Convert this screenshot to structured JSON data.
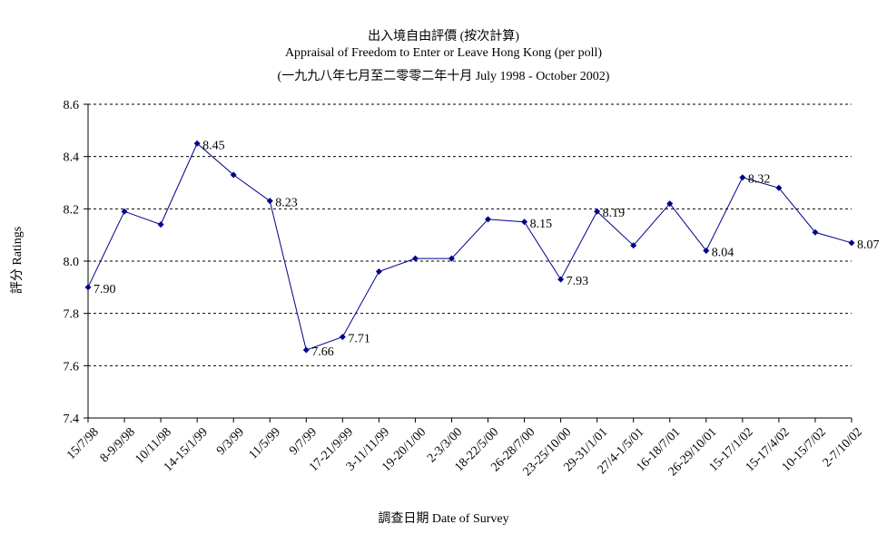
{
  "chart_data": {
    "type": "line",
    "title": "出入境自由評價 (按次計算)",
    "subtitle": "Appraisal of Freedom to Enter or Leave Hong Kong (per poll)",
    "subtitle2": "(一九九八年七月至二零零二年十月 July 1998 - October 2002)",
    "xlabel": "調查日期 Date of Survey",
    "ylabel": "評分 Ratings",
    "ylim": [
      7.4,
      8.6
    ],
    "yticks": [
      "7.4",
      "7.6",
      "7.8",
      "8.0",
      "8.2",
      "8.4",
      "8.6"
    ],
    "categories": [
      "15/7/98",
      "8-9/9/98",
      "10/11/98",
      "14-15/1/99",
      "9/3/99",
      "11/5/99",
      "9/7/99",
      "17-21/9/99",
      "3-11/11/99",
      "19-20/1/00",
      "2-3/3/00",
      "18-22/5/00",
      "26-28/7/00",
      "23-25/10/00",
      "29-31/1/01",
      "27/4-1/5/01",
      "16-18/7/01",
      "26-29/10/01",
      "15-17/1/02",
      "15-17/4/02",
      "10-15/7/02",
      "2-7/10/02"
    ],
    "series": [
      {
        "values": [
          7.9,
          8.19,
          8.14,
          8.45,
          8.33,
          8.23,
          7.66,
          7.71,
          7.96,
          8.01,
          8.01,
          8.16,
          8.15,
          7.93,
          8.19,
          8.06,
          8.22,
          8.04,
          8.32,
          8.28,
          8.11,
          8.07
        ],
        "color": "#00008b"
      }
    ],
    "data_labels": [
      {
        "index": 0,
        "text": "7.90"
      },
      {
        "index": 3,
        "text": "8.45"
      },
      {
        "index": 5,
        "text": "8.23"
      },
      {
        "index": 6,
        "text": "7.66"
      },
      {
        "index": 7,
        "text": "7.71"
      },
      {
        "index": 12,
        "text": "8.15"
      },
      {
        "index": 13,
        "text": "7.93"
      },
      {
        "index": 14,
        "text": "8.19"
      },
      {
        "index": 17,
        "text": "8.04"
      },
      {
        "index": 18,
        "text": "8.32"
      },
      {
        "index": 21,
        "text": "8.07"
      }
    ],
    "grid": true,
    "legend": "none"
  }
}
